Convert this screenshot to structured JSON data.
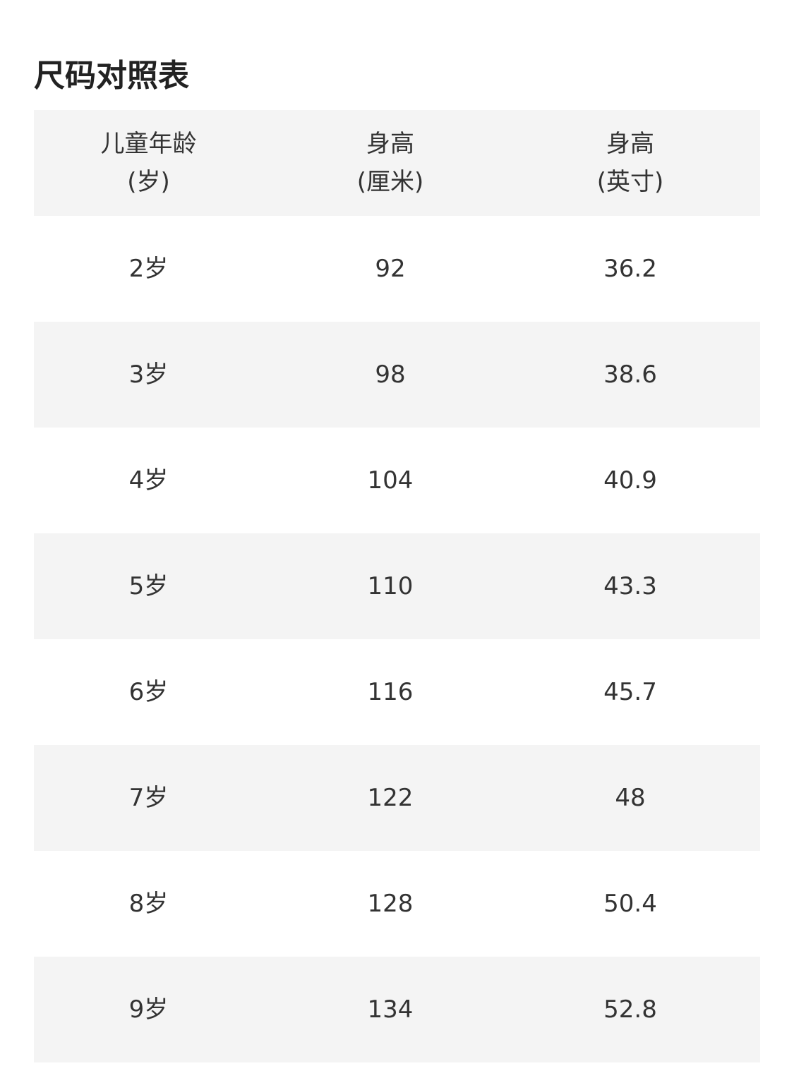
{
  "title": "尺码对照表",
  "columns": [
    {
      "line1": "儿童年龄",
      "line2": "(岁)"
    },
    {
      "line1": "身高",
      "line2": "(厘米)"
    },
    {
      "line1": "身高",
      "line2": "(英寸)"
    }
  ],
  "rows": [
    [
      "2岁",
      "92",
      "36.2"
    ],
    [
      "3岁",
      "98",
      "38.6"
    ],
    [
      "4岁",
      "104",
      "40.9"
    ],
    [
      "5岁",
      "110",
      "43.3"
    ],
    [
      "6岁",
      "116",
      "45.7"
    ],
    [
      "7岁",
      "122",
      "48"
    ],
    [
      "8岁",
      "128",
      "50.4"
    ],
    [
      "9岁",
      "134",
      "52.8"
    ]
  ]
}
